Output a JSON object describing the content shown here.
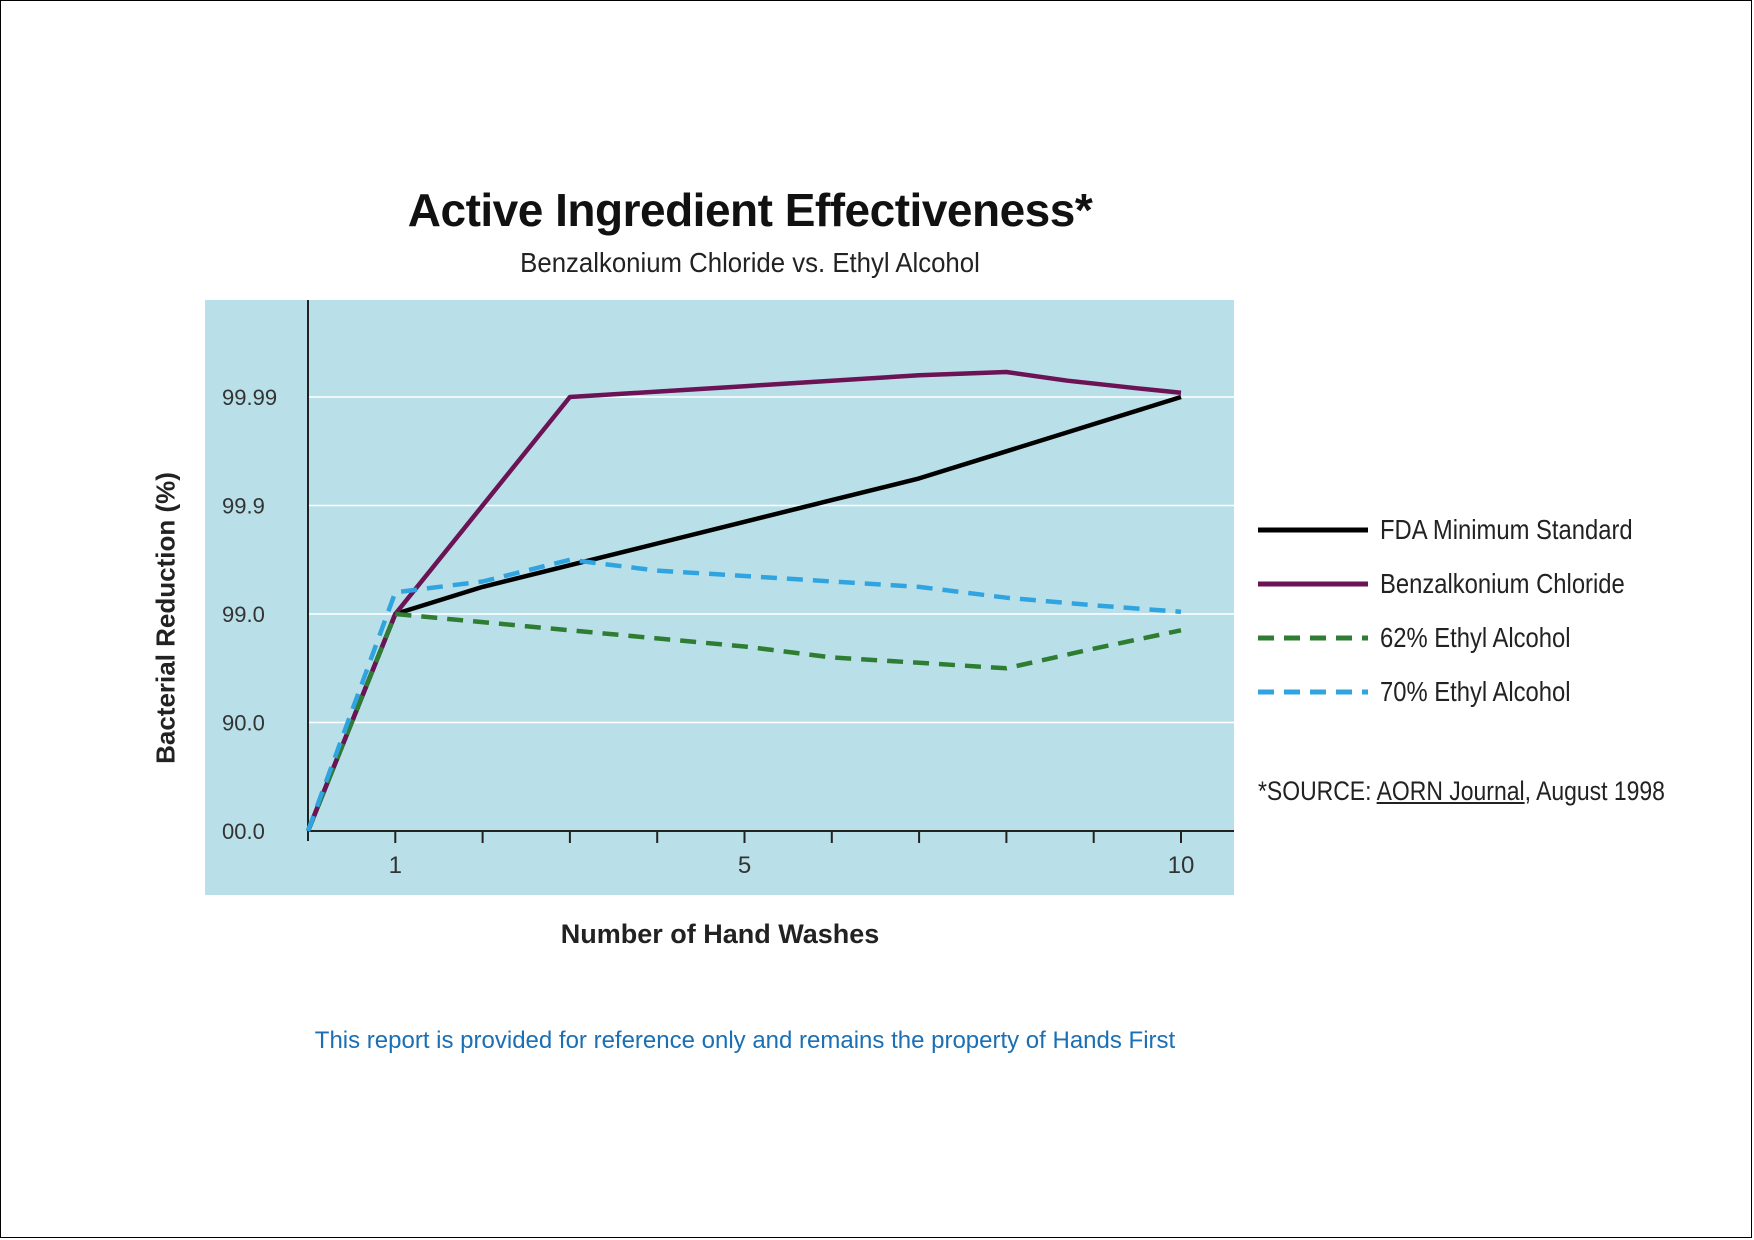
{
  "chart_data": {
    "type": "line",
    "title": "Active Ingredient Effectiveness*",
    "subtitle": "Benzalkonium Chloride vs. Ethyl Alcohol",
    "xlabel": "Number of Hand Washes",
    "ylabel": "Bacterial Reduction (%)",
    "x_tick_labels": [
      {
        "value": 1,
        "label": "1"
      },
      {
        "value": 5,
        "label": "5"
      },
      {
        "value": 10,
        "label": "10"
      }
    ],
    "x_minor_ticks": [
      1,
      2,
      3,
      4,
      5,
      6,
      7,
      8,
      9,
      10
    ],
    "xlim": [
      0,
      10.6
    ],
    "y_tick_labels": [
      "00.0",
      "90.0",
      "99.0",
      "99.9",
      "99.99"
    ],
    "y_scale": "ordinal levels (each gridline one level: 00.0, 90.0, 99.0, 99.9, 99.99)",
    "ylim_levels": [
      0,
      4.9
    ],
    "grid": "horizontal",
    "plot_background": "#b9e0e8",
    "legend_placement": "right",
    "series": [
      {
        "name": "FDA Minimum Standard",
        "color": "#000000",
        "dash": "solid",
        "points": [
          [
            0,
            0
          ],
          [
            1,
            2
          ],
          [
            2,
            2.25
          ],
          [
            3,
            2.45
          ],
          [
            4,
            2.65
          ],
          [
            5,
            2.85
          ],
          [
            6,
            3.05
          ],
          [
            7,
            3.25
          ],
          [
            8,
            3.5
          ],
          [
            9,
            3.75
          ],
          [
            10,
            4.0
          ]
        ]
      },
      {
        "name": "Benzalkonium Chloride",
        "color": "#6b1354",
        "dash": "solid",
        "points": [
          [
            0,
            0
          ],
          [
            1,
            2
          ],
          [
            3,
            4.0
          ],
          [
            4,
            4.05
          ],
          [
            5,
            4.1
          ],
          [
            6,
            4.15
          ],
          [
            7,
            4.2
          ],
          [
            8,
            4.23
          ],
          [
            8.7,
            4.15
          ],
          [
            9.5,
            4.08
          ],
          [
            10,
            4.04
          ]
        ]
      },
      {
        "name": "62% Ethyl Alcohol",
        "color": "#2e7d32",
        "dash": "dashed",
        "points": [
          [
            0,
            0
          ],
          [
            1,
            2.0
          ],
          [
            3,
            1.85
          ],
          [
            5,
            1.7
          ],
          [
            6,
            1.6
          ],
          [
            7,
            1.55
          ],
          [
            8,
            1.5
          ],
          [
            9,
            1.68
          ],
          [
            10,
            1.85
          ]
        ]
      },
      {
        "name": "70% Ethyl Alcohol",
        "color": "#2fa4e0",
        "dash": "dashed",
        "points": [
          [
            0,
            0
          ],
          [
            1,
            2.2
          ],
          [
            2,
            2.3
          ],
          [
            3,
            2.5
          ],
          [
            4,
            2.4
          ],
          [
            5,
            2.35
          ],
          [
            6,
            2.3
          ],
          [
            7,
            2.25
          ],
          [
            8,
            2.15
          ],
          [
            9,
            2.08
          ],
          [
            10,
            2.02
          ]
        ]
      }
    ],
    "annotation": {
      "prefix": "*SOURCE: ",
      "journal": "AORN Journal",
      "suffix": ", August 1998"
    }
  },
  "footer": "This report is provided for reference only and remains the property of Hands First"
}
